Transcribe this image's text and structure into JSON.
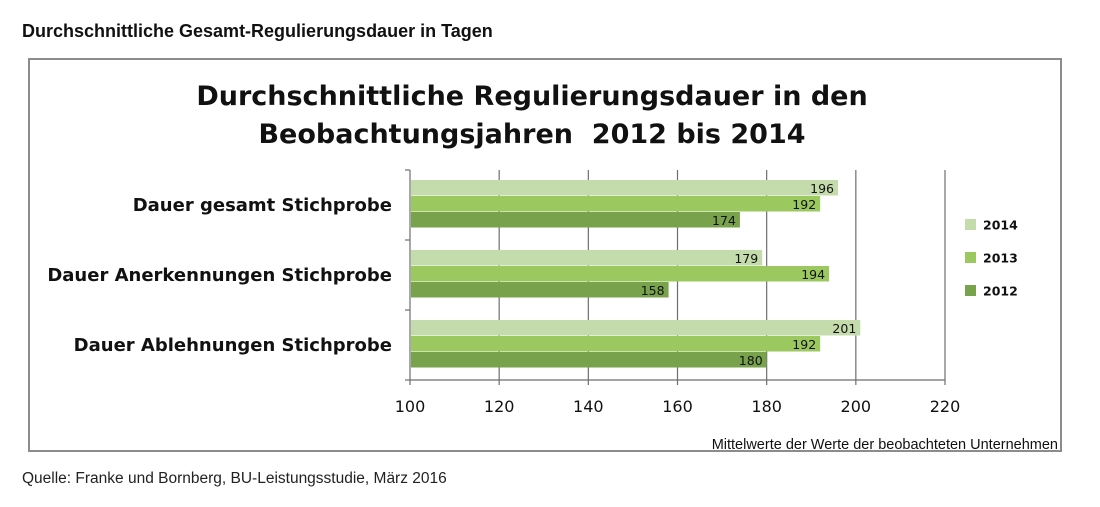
{
  "page": {
    "heading": "Durchschnittliche Gesamt-Regulierungsdauer in Tagen",
    "source": "Quelle: Franke und Bornberg, BU-Leistungsstudie, März 2016"
  },
  "chart_data": {
    "type": "bar",
    "orientation": "horizontal",
    "title_lines": [
      "Durchschnittliche Regulierungsdauer in den",
      "Beobachtungsjahren  2012 bis 2014"
    ],
    "categories": [
      "Dauer gesamt Stichprobe",
      "Dauer Anerkennungen Stichprobe",
      "Dauer Ablehnungen Stichprobe"
    ],
    "series": [
      {
        "name": "2014",
        "color": "#c4dcab",
        "values": [
          196,
          179,
          201
        ]
      },
      {
        "name": "2013",
        "color": "#9bc85f",
        "values": [
          192,
          194,
          192
        ]
      },
      {
        "name": "2012",
        "color": "#78a24c",
        "values": [
          174,
          158,
          180
        ]
      }
    ],
    "x_ticks": [
      "100",
      "120",
      "140",
      "160",
      "180",
      "200",
      "220"
    ],
    "xlim": [
      100,
      220
    ],
    "xlabel": "Mittelwerte der Werte der beobachteten Unternehmen",
    "grid": "vertical",
    "legend_position": "right"
  }
}
